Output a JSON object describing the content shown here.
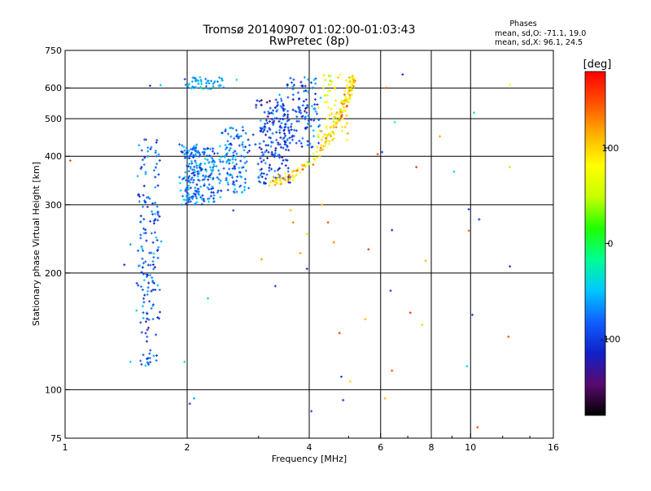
{
  "chart_data": {
    "type": "scatter",
    "title": "Tromsø 20140907 01:02:00-01:03:43",
    "subtitle": "RwPretec (8p)",
    "xlabel": "Frequency [MHz]",
    "ylabel": "Stationary phase Virtual Height [km]",
    "xscale": "log",
    "yscale": "log",
    "xlim": [
      1,
      16
    ],
    "ylim": [
      75,
      750
    ],
    "x_ticks": [
      1,
      2,
      4,
      6,
      8,
      10,
      16
    ],
    "x_tick_labels": [
      "1",
      "2",
      "4",
      "6",
      "8",
      "10",
      "16"
    ],
    "x_grid": [
      2,
      4,
      6,
      8,
      10
    ],
    "y_ticks": [
      75,
      100,
      200,
      300,
      400,
      500,
      600,
      750
    ],
    "y_tick_labels": [
      "75",
      "100",
      "200",
      "300",
      "400",
      "500",
      "600",
      "750"
    ],
    "y_grid": [
      100,
      200,
      300,
      400,
      500,
      600
    ],
    "grid": true,
    "legend": {
      "title": "Phases",
      "line1": "mean, sd,O: -71.1, 19.0",
      "line2": "mean, sd,X:  96.1, 24.5"
    },
    "colorbar": {
      "label": "[deg]",
      "ticks": [
        100,
        0,
        -100
      ],
      "tick_labels": [
        "100",
        "0",
        "-100"
      ],
      "range": [
        -180,
        180
      ],
      "colors": [
        "#000000",
        "#5a0a6e",
        "#1020c8",
        "#1060ff",
        "#00c8ff",
        "#00ff90",
        "#20ff00",
        "#c8ff00",
        "#ffff00",
        "#ffb000",
        "#ff5000",
        "#ff0000"
      ]
    },
    "point_size_mhz_note": "",
    "series": [
      {
        "traces": [
          {
            "f0": 1.52,
            "f1": 1.7,
            "h0": 115,
            "h1": 445,
            "spread": 0.035,
            "n": 170,
            "phase": -85,
            "psd": 22
          },
          {
            "f0": 1.95,
            "f1": 2.15,
            "h0": 300,
            "h1": 430,
            "spread": 0.05,
            "n": 150,
            "phase": -75,
            "psd": 20
          },
          {
            "f0": 2.15,
            "f1": 2.4,
            "h0": 305,
            "h1": 420,
            "spread": 0.05,
            "n": 90,
            "phase": -75,
            "psd": 20
          },
          {
            "f0": 2.45,
            "f1": 2.8,
            "h0": 320,
            "h1": 480,
            "spread": 0.05,
            "n": 110,
            "phase": -75,
            "psd": 20
          },
          {
            "f0": 3.0,
            "f1": 3.6,
            "h0": 340,
            "h1": 560,
            "spread": 0.05,
            "n": 170,
            "phase": -100,
            "psd": 20
          },
          {
            "f0": 3.4,
            "f1": 4.2,
            "h0": 420,
            "h1": 640,
            "spread": 0.05,
            "n": 130,
            "phase": -90,
            "psd": 20
          },
          {
            "f0": 2.0,
            "f1": 2.45,
            "h0": 595,
            "h1": 640,
            "spread": 0.03,
            "n": 50,
            "phase": -60,
            "psd": 15
          }
        ],
        "x_arc": [
          3.2,
          3.6,
          4.0,
          4.4,
          4.8,
          5.05,
          5.1
        ],
        "y_arc": [
          345,
          355,
          385,
          440,
          520,
          590,
          640
        ],
        "arc_phase": 100,
        "arc_n": 170,
        "f_band": [
          4.2,
          5.0
        ],
        "band_h": [
          440,
          650
        ],
        "band_n": 60,
        "band_phase": 80,
        "points": [
          {
            "x": 1.03,
            "y": 390,
            "phase": 150
          },
          {
            "x": 1.4,
            "y": 210,
            "phase": -110
          },
          {
            "x": 1.45,
            "y": 237,
            "phase": -60
          },
          {
            "x": 1.5,
            "y": 160,
            "phase": -40
          },
          {
            "x": 1.45,
            "y": 118,
            "phase": -40
          },
          {
            "x": 1.62,
            "y": 608,
            "phase": -100
          },
          {
            "x": 1.72,
            "y": 610,
            "phase": -50
          },
          {
            "x": 1.97,
            "y": 118,
            "phase": -40
          },
          {
            "x": 2.03,
            "y": 92,
            "phase": -100
          },
          {
            "x": 2.08,
            "y": 95,
            "phase": -60
          },
          {
            "x": 2.25,
            "y": 172,
            "phase": -40
          },
          {
            "x": 2.6,
            "y": 290,
            "phase": -100
          },
          {
            "x": 2.65,
            "y": 630,
            "phase": -40
          },
          {
            "x": 3.05,
            "y": 217,
            "phase": 120
          },
          {
            "x": 3.3,
            "y": 185,
            "phase": -100
          },
          {
            "x": 3.6,
            "y": 290,
            "phase": 110
          },
          {
            "x": 3.65,
            "y": 270,
            "phase": 130
          },
          {
            "x": 3.8,
            "y": 225,
            "phase": 120
          },
          {
            "x": 3.95,
            "y": 205,
            "phase": -110
          },
          {
            "x": 3.95,
            "y": 252,
            "phase": 100
          },
          {
            "x": 4.05,
            "y": 88,
            "phase": -100
          },
          {
            "x": 4.3,
            "y": 300,
            "phase": 120
          },
          {
            "x": 4.45,
            "y": 270,
            "phase": 150
          },
          {
            "x": 4.6,
            "y": 240,
            "phase": 130
          },
          {
            "x": 4.75,
            "y": 140,
            "phase": 160
          },
          {
            "x": 4.8,
            "y": 108,
            "phase": -100
          },
          {
            "x": 4.85,
            "y": 94,
            "phase": -100
          },
          {
            "x": 5.05,
            "y": 105,
            "phase": 100
          },
          {
            "x": 5.5,
            "y": 152,
            "phase": 110
          },
          {
            "x": 5.6,
            "y": 230,
            "phase": 160
          },
          {
            "x": 5.9,
            "y": 405,
            "phase": 150
          },
          {
            "x": 6.05,
            "y": 410,
            "phase": -100
          },
          {
            "x": 6.15,
            "y": 95,
            "phase": 110
          },
          {
            "x": 6.2,
            "y": 600,
            "phase": 150
          },
          {
            "x": 6.35,
            "y": 180,
            "phase": -100
          },
          {
            "x": 6.4,
            "y": 112,
            "phase": 150
          },
          {
            "x": 6.4,
            "y": 258,
            "phase": -110
          },
          {
            "x": 6.5,
            "y": 490,
            "phase": -10
          },
          {
            "x": 6.8,
            "y": 650,
            "phase": -110
          },
          {
            "x": 7.1,
            "y": 158,
            "phase": 160
          },
          {
            "x": 7.35,
            "y": 375,
            "phase": 160
          },
          {
            "x": 7.6,
            "y": 147,
            "phase": 100
          },
          {
            "x": 7.75,
            "y": 215,
            "phase": 110
          },
          {
            "x": 8.4,
            "y": 450,
            "phase": 120
          },
          {
            "x": 9.1,
            "y": 365,
            "phase": -50
          },
          {
            "x": 9.8,
            "y": 115,
            "phase": -40
          },
          {
            "x": 9.9,
            "y": 257,
            "phase": 150
          },
          {
            "x": 9.9,
            "y": 292,
            "phase": -100
          },
          {
            "x": 10.1,
            "y": 156,
            "phase": -100
          },
          {
            "x": 10.2,
            "y": 518,
            "phase": -30
          },
          {
            "x": 10.4,
            "y": 80,
            "phase": 150
          },
          {
            "x": 10.5,
            "y": 275,
            "phase": -100
          },
          {
            "x": 12.4,
            "y": 137,
            "phase": 150
          },
          {
            "x": 12.5,
            "y": 208,
            "phase": -110
          },
          {
            "x": 12.5,
            "y": 375,
            "phase": 100
          },
          {
            "x": 12.5,
            "y": 612,
            "phase": 80
          }
        ]
      }
    ]
  }
}
